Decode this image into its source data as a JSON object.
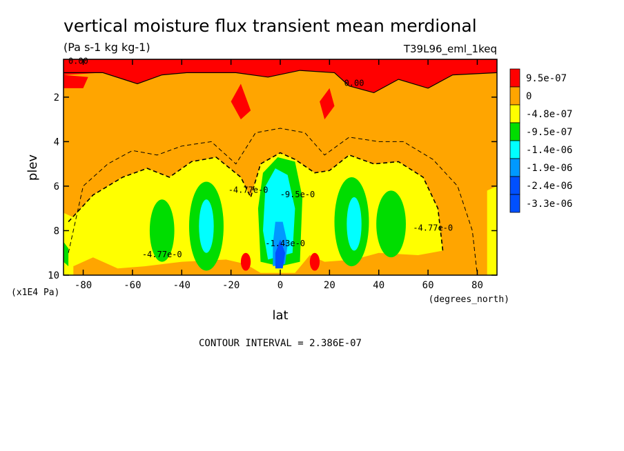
{
  "chart_data": {
    "type": "heatmap",
    "title": "vertical moisture flux transient mean merdional",
    "units": "(Pa s-1 kg kg-1)",
    "dataset": "T39L96_eml_1keq",
    "xlabel": "lat",
    "x_units": "(degrees_north)",
    "ylabel": "plev",
    "y_units": "(x1E4 Pa)",
    "xlim": [
      -88,
      88
    ],
    "ylim": [
      10,
      0.3
    ],
    "x_ticks": [
      -80,
      -60,
      -40,
      -20,
      0,
      20,
      40,
      60,
      80
    ],
    "x_tick_labels": [
      "-80",
      "-60",
      "-40",
      "-20",
      "0",
      "20",
      "40",
      "60",
      "80"
    ],
    "y_ticks": [
      2,
      4,
      6,
      8,
      10
    ],
    "y_tick_labels": [
      "2",
      "4",
      "6",
      "8",
      "10"
    ],
    "contour_interval_label": "CONTOUR INTERVAL = 2.386E-07",
    "legend": {
      "placement": "right",
      "entries": [
        {
          "label": "9.5e-07",
          "color": "#ff0000"
        },
        {
          "label": "0",
          "color": "#ffa500"
        },
        {
          "label": "-4.8e-07",
          "color": "#ffff00"
        },
        {
          "label": "-9.5e-07",
          "color": "#00dd00"
        },
        {
          "label": "-1.4e-06",
          "color": "#00ffff"
        },
        {
          "label": "-1.9e-06",
          "color": "#0099ff"
        },
        {
          "label": "-2.4e-06",
          "color": "#0050ff"
        },
        {
          "label": "-3.3e-06",
          "color": "#0050ff"
        }
      ]
    },
    "contour_labels": [
      {
        "text": "0.00",
        "x": -82,
        "y": 0.5
      },
      {
        "text": "0.00",
        "x": 30,
        "y": 1.5
      },
      {
        "text": "-4.77e-0",
        "x": -48,
        "y": 9.2
      },
      {
        "text": "-4.77e-0",
        "x": -13,
        "y": 6.3
      },
      {
        "text": "-9.5e-0",
        "x": 7,
        "y": 6.5
      },
      {
        "text": "-4.77e-0",
        "x": 62,
        "y": 8.0
      },
      {
        "text": "-1.43e-0",
        "x": 2,
        "y": 8.7
      }
    ]
  }
}
